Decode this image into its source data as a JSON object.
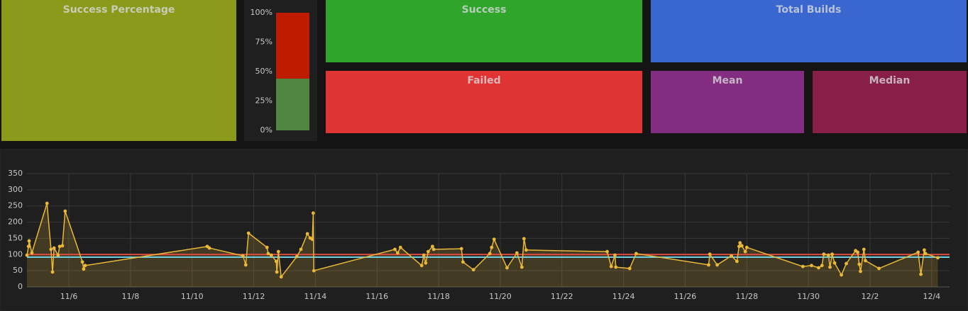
{
  "panels": [
    {
      "title": "Success Percentage",
      "color": "#8c9a1c"
    },
    {
      "title": "Success",
      "color": "#2fa52b"
    },
    {
      "title": "Total Builds",
      "color": "#3a66cf"
    },
    {
      "title": "Failed",
      "color": "#e03434"
    },
    {
      "title": "Mean",
      "color": "#822d80"
    },
    {
      "title": "Median",
      "color": "#871f48"
    }
  ],
  "chart_data": [
    {
      "type": "stacked-bar",
      "series": [
        {
          "color": "#508642",
          "values": [
            44
          ]
        },
        {
          "color": "#bf1b00",
          "values": [
            56
          ]
        }
      ],
      "ylim": [
        0,
        100
      ],
      "yticks": [
        {
          "value": 0,
          "label": "0%"
        },
        {
          "value": 25,
          "label": "25%"
        },
        {
          "value": 50,
          "label": "50%"
        },
        {
          "value": 75,
          "label": "75%"
        },
        {
          "value": 100,
          "label": "100%"
        }
      ]
    },
    {
      "type": "line",
      "color": "#eab839",
      "grid": true,
      "x": [
        4.64,
        4.69,
        4.71,
        4.8,
        5.29,
        5.42,
        5.47,
        5.52,
        5.65,
        5.7,
        5.79,
        5.88,
        6.44,
        6.48,
        6.53,
        10.49,
        10.56,
        11.65,
        11.74,
        11.83,
        12.43,
        12.47,
        12.57,
        12.73,
        12.75,
        12.8,
        12.89,
        13.4,
        13.53,
        13.74,
        13.83,
        13.9,
        13.93,
        13.95,
        16.58,
        16.67,
        16.76,
        17.45,
        17.52,
        17.58,
        17.66,
        17.8,
        17.84,
        18.74,
        18.79,
        19.13,
        19.66,
        19.72,
        19.8,
        20.22,
        20.54,
        20.7,
        20.77,
        20.84,
        23.47,
        23.6,
        23.72,
        23.75,
        24.2,
        24.41,
        26.76,
        26.8,
        27.04,
        27.5,
        27.68,
        27.75,
        27.78,
        27.84,
        27.95,
        28.0,
        29.82,
        30.1,
        30.33,
        30.44,
        30.5,
        30.65,
        30.7,
        30.77,
        30.85,
        31.07,
        31.23,
        31.53,
        31.6,
        31.65,
        31.69,
        31.8,
        31.85,
        32.29,
        33.56,
        33.65,
        33.76,
        33.8,
        34.2
      ],
      "values": [
        98,
        125,
        142,
        105,
        258,
        116,
        46,
        120,
        98,
        125,
        127,
        234,
        77,
        55,
        66,
        125,
        120,
        96,
        68,
        166,
        122,
        103,
        98,
        79,
        46,
        109,
        31,
        94,
        116,
        164,
        151,
        147,
        228,
        50,
        116,
        105,
        122,
        66,
        98,
        74,
        109,
        125,
        116,
        118,
        77,
        53,
        103,
        122,
        147,
        59,
        105,
        61,
        149,
        114,
        109,
        63,
        98,
        61,
        57,
        103,
        68,
        101,
        68,
        96,
        79,
        125,
        136,
        127,
        109,
        122,
        63,
        66,
        59,
        66,
        101,
        98,
        61,
        101,
        74,
        37,
        72,
        112,
        107,
        70,
        48,
        116,
        81,
        57,
        107,
        39,
        114,
        103,
        90
      ],
      "thresholds": [
        {
          "value": 100,
          "color": "#e24d42"
        },
        {
          "value": 92,
          "color": "#6ed0e0"
        }
      ],
      "xlim": [
        4.64,
        34.58
      ],
      "xticks": [
        {
          "value": 6,
          "label": "11/6"
        },
        {
          "value": 8,
          "label": "11/8"
        },
        {
          "value": 10,
          "label": "11/10"
        },
        {
          "value": 12,
          "label": "11/12"
        },
        {
          "value": 14,
          "label": "11/14"
        },
        {
          "value": 16,
          "label": "11/16"
        },
        {
          "value": 18,
          "label": "11/18"
        },
        {
          "value": 20,
          "label": "11/20"
        },
        {
          "value": 22,
          "label": "11/22"
        },
        {
          "value": 24,
          "label": "11/24"
        },
        {
          "value": 26,
          "label": "11/26"
        },
        {
          "value": 28,
          "label": "11/28"
        },
        {
          "value": 30,
          "label": "11/30"
        },
        {
          "value": 32,
          "label": "12/2"
        },
        {
          "value": 34,
          "label": "12/4"
        }
      ],
      "ylim": [
        0,
        350
      ],
      "yticks": [
        0,
        50,
        100,
        150,
        200,
        250,
        300,
        350
      ]
    }
  ]
}
